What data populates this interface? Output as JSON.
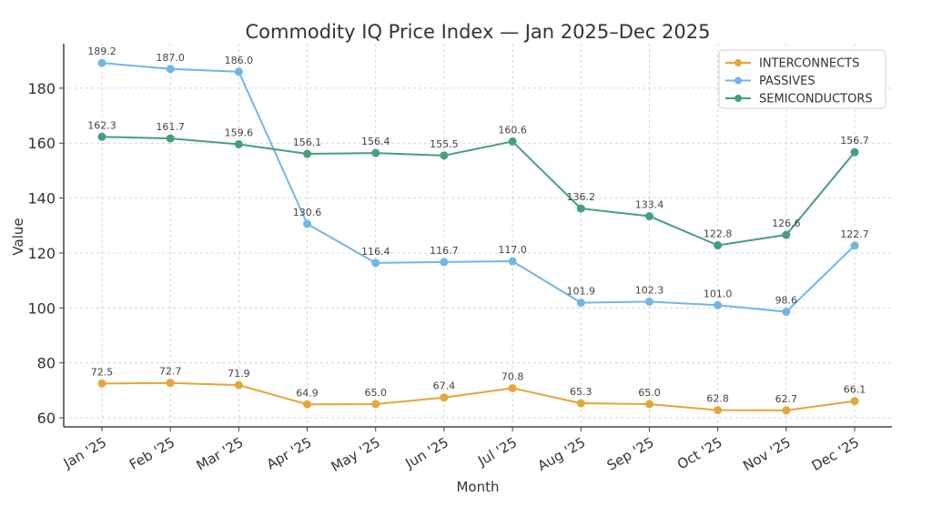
{
  "chart_data": {
    "type": "line",
    "title": "Commodity IQ Price Index — Jan 2025–Dec 2025",
    "xlabel": "Month",
    "ylabel": "Value",
    "categories": [
      "Jan '25",
      "Feb '25",
      "Mar '25",
      "Apr '25",
      "May '25",
      "Jun '25",
      "Jul '25",
      "Aug '25",
      "Sep '25",
      "Oct '25",
      "Nov '25",
      "Dec '25"
    ],
    "ylim": [
      56.7,
      196.2
    ],
    "yticks": [
      60,
      80,
      100,
      120,
      140,
      160,
      180
    ],
    "grid": true,
    "legend_position": "top-right",
    "series": [
      {
        "name": "INTERCONNECTS",
        "color": "#E3A73A",
        "values": [
          72.5,
          72.7,
          71.9,
          64.9,
          65.0,
          67.4,
          70.8,
          65.3,
          65.0,
          62.8,
          62.7,
          66.1
        ],
        "labels": [
          "72.5",
          "72.7",
          "71.9",
          "64.9",
          "65.0",
          "67.4",
          "70.8",
          "65.3",
          "65.0",
          "62.8",
          "62.7",
          "66.1"
        ]
      },
      {
        "name": "PASSIVES",
        "color": "#72B6E5",
        "values": [
          189.2,
          187.0,
          186.0,
          130.6,
          116.4,
          116.7,
          117.0,
          101.9,
          102.3,
          101.0,
          98.6,
          122.7
        ],
        "labels": [
          "189.2",
          "187.0",
          "186.0",
          "130.6",
          "116.4",
          "116.7",
          "117.0",
          "101.9",
          "102.3",
          "101.0",
          "98.6",
          "122.7"
        ]
      },
      {
        "name": "SEMICONDUCTORS",
        "color": "#45A07A",
        "values": [
          162.3,
          161.7,
          159.6,
          156.1,
          156.4,
          155.5,
          160.6,
          136.2,
          133.4,
          122.8,
          126.6,
          156.7
        ],
        "labels": [
          "162.3",
          "161.7",
          "159.6",
          "156.1",
          "156.4",
          "155.5",
          "160.6",
          "136.2",
          "133.4",
          "122.8",
          "126.6",
          "156.7"
        ]
      }
    ]
  }
}
